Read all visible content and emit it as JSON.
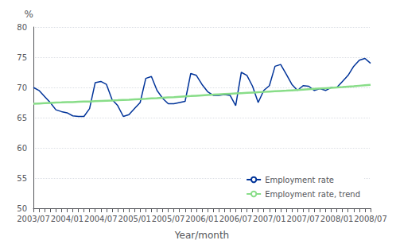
{
  "chart_data": {
    "type": "line",
    "xlabel": "Year/month",
    "ylabel": "%",
    "categories": [
      "2003/07",
      null,
      null,
      null,
      null,
      null,
      "2004/01",
      null,
      null,
      null,
      null,
      null,
      "2004/07",
      null,
      null,
      null,
      null,
      null,
      "2005/01",
      null,
      null,
      null,
      null,
      null,
      "2005/07",
      null,
      null,
      null,
      null,
      null,
      "2006/01",
      null,
      null,
      null,
      null,
      null,
      "2006/07",
      null,
      null,
      null,
      null,
      null,
      "2007/01",
      null,
      null,
      null,
      null,
      null,
      "2007/07",
      null,
      null,
      null,
      null,
      null,
      "2008/01",
      null,
      null,
      null,
      null,
      null,
      "2008/07"
    ],
    "series": [
      {
        "name": "Employment rate",
        "color": "#003399",
        "values": [
          70.0,
          69.5,
          68.5,
          67.5,
          66.3,
          66.0,
          65.8,
          65.3,
          65.2,
          65.2,
          66.5,
          70.8,
          71.0,
          70.5,
          68.0,
          67.0,
          65.2,
          65.5,
          66.5,
          67.5,
          71.5,
          71.8,
          69.5,
          68.2,
          67.3,
          67.3,
          67.5,
          67.7,
          72.3,
          72.0,
          70.5,
          69.3,
          68.7,
          68.7,
          68.8,
          68.7,
          67.0,
          72.5,
          72.0,
          70.2,
          67.5,
          69.5,
          70.3,
          73.5,
          73.8,
          72.2,
          70.5,
          69.5,
          70.3,
          70.2,
          69.5,
          69.8,
          69.5,
          70.0,
          70.0,
          71.0,
          72.0,
          73.5,
          74.5,
          74.8,
          74.0
        ]
      },
      {
        "name": "Employment rate, trend",
        "color": "#88dd88",
        "values": [
          67.3,
          67.35,
          67.4,
          67.45,
          67.5,
          67.52,
          67.55,
          67.58,
          67.62,
          67.65,
          67.68,
          67.72,
          67.76,
          67.8,
          67.84,
          67.88,
          67.93,
          67.97,
          68.02,
          68.07,
          68.12,
          68.18,
          68.23,
          68.29,
          68.35,
          68.4,
          68.46,
          68.52,
          68.57,
          68.63,
          68.69,
          68.75,
          68.8,
          68.86,
          68.91,
          68.96,
          69.01,
          69.06,
          69.11,
          69.16,
          69.21,
          69.26,
          69.31,
          69.36,
          69.41,
          69.46,
          69.52,
          69.58,
          69.64,
          69.7,
          69.76,
          69.82,
          69.88,
          69.94,
          70.0,
          70.06,
          70.13,
          70.2,
          70.28,
          70.35,
          70.42
        ]
      }
    ],
    "ylim": [
      50,
      80
    ],
    "yticks": [
      50,
      55,
      60,
      65,
      70,
      75,
      80
    ],
    "grid": true,
    "legend": "lower right"
  }
}
